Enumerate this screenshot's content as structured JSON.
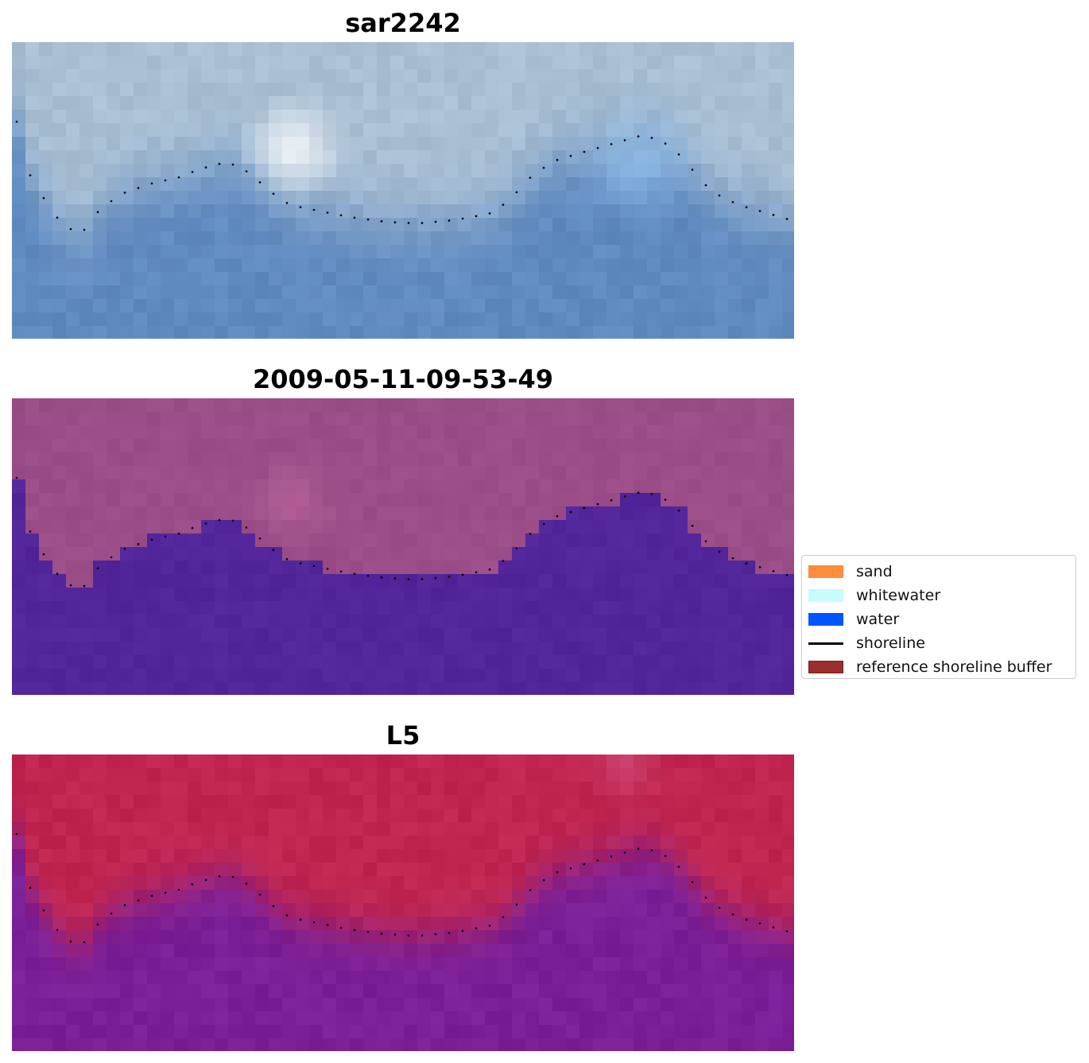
{
  "panels": [
    {
      "title": "sar2242"
    },
    {
      "title": "2009-05-11-09-53-49"
    },
    {
      "title": "L5"
    }
  ],
  "legend": {
    "items": [
      {
        "label": "sand",
        "color": "#ff8c3a",
        "kind": "patch"
      },
      {
        "label": "whitewater",
        "color": "#c8fbfb",
        "kind": "patch"
      },
      {
        "label": "water",
        "color": "#0055ff",
        "kind": "patch"
      },
      {
        "label": "shoreline",
        "color": "#000000",
        "kind": "line"
      },
      {
        "label": "reference shoreline buffer",
        "color": "#9b2d2d",
        "kind": "patch"
      }
    ]
  },
  "colors": {
    "rgb_land": "#a9bfd3",
    "rgb_water": "#5f8ac0",
    "classified_land": "#9a4d87",
    "classified_water": "#52259a",
    "index_land": "#c0254f",
    "index_water": "#7a1f98"
  }
}
